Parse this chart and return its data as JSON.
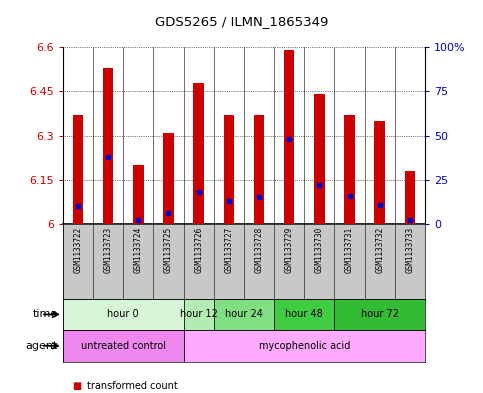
{
  "title": "GDS5265 / ILMN_1865349",
  "samples": [
    "GSM1133722",
    "GSM1133723",
    "GSM1133724",
    "GSM1133725",
    "GSM1133726",
    "GSM1133727",
    "GSM1133728",
    "GSM1133729",
    "GSM1133730",
    "GSM1133731",
    "GSM1133732",
    "GSM1133733"
  ],
  "transformed_counts": [
    6.37,
    6.53,
    6.2,
    6.31,
    6.48,
    6.37,
    6.37,
    6.59,
    6.44,
    6.37,
    6.35,
    6.18
  ],
  "percentile_ranks": [
    10,
    38,
    2,
    6,
    18,
    13,
    15,
    48,
    22,
    16,
    11,
    2
  ],
  "ymin": 6.0,
  "ymax": 6.6,
  "yticks": [
    6.0,
    6.15,
    6.3,
    6.45,
    6.6
  ],
  "ytick_labels": [
    "6",
    "6.15",
    "6.3",
    "6.45",
    "6.6"
  ],
  "right_yticks": [
    0,
    25,
    50,
    75,
    100
  ],
  "right_ytick_labels": [
    "0",
    "25",
    "50",
    "75",
    "100%"
  ],
  "time_groups": [
    {
      "label": "hour 0",
      "cols": [
        0,
        1,
        2,
        3
      ],
      "color": "#d6f5d6"
    },
    {
      "label": "hour 12",
      "cols": [
        4
      ],
      "color": "#b3ecb3"
    },
    {
      "label": "hour 24",
      "cols": [
        5,
        6
      ],
      "color": "#80df80"
    },
    {
      "label": "hour 48",
      "cols": [
        7,
        8
      ],
      "color": "#40cc40"
    },
    {
      "label": "hour 72",
      "cols": [
        9,
        10,
        11
      ],
      "color": "#33bb33"
    }
  ],
  "agent_groups": [
    {
      "label": "untreated control",
      "cols": [
        0,
        1,
        2,
        3
      ],
      "color": "#ee88ee"
    },
    {
      "label": "mycophenolic acid",
      "cols": [
        4,
        5,
        6,
        7,
        8,
        9,
        10,
        11
      ],
      "color": "#ffaaff"
    }
  ],
  "bar_color": "#cc0000",
  "dot_color": "#0000cc",
  "bar_width": 0.35,
  "sample_bg_color": "#c8c8c8",
  "ylabel_color": "#cc0000",
  "ylabel2_color": "#0000cc"
}
